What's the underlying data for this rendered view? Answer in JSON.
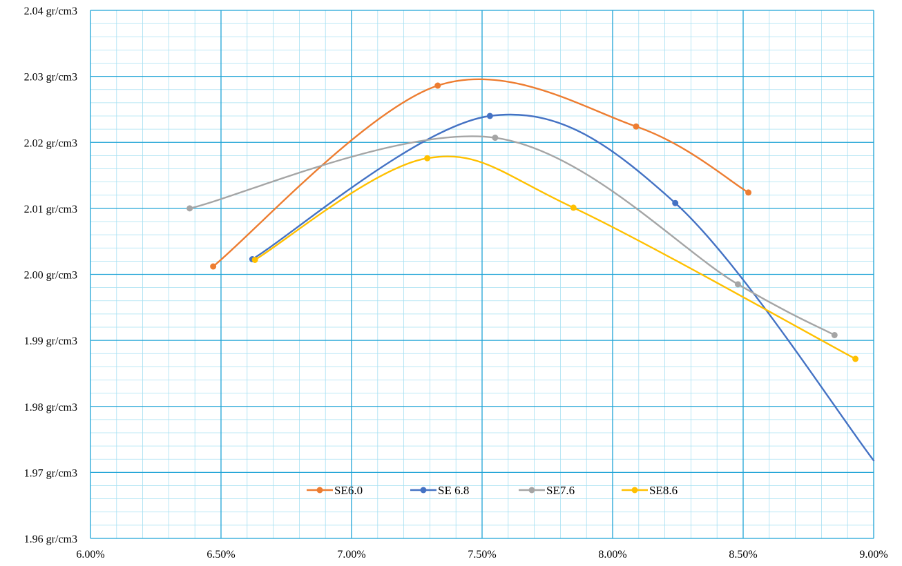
{
  "chart_data": {
    "type": "line",
    "title": "",
    "xlabel": "",
    "ylabel": "",
    "xlim": [
      0.06,
      0.09
    ],
    "ylim": [
      1.96,
      2.04
    ],
    "x_ticks": [
      0.06,
      0.065,
      0.07,
      0.075,
      0.08,
      0.085,
      0.09
    ],
    "x_tick_labels": [
      "6.00%",
      "6.50%",
      "7.00%",
      "7.50%",
      "8.00%",
      "8.50%",
      "9.00%"
    ],
    "y_ticks": [
      1.96,
      1.97,
      1.98,
      1.99,
      2.0,
      2.01,
      2.02,
      2.03,
      2.04
    ],
    "y_tick_labels": [
      "1.96 gr/cm3",
      "1.97 gr/cm3",
      "1.98 gr/cm3",
      "1.99 gr/cm3",
      "2.00 gr/cm3",
      "2.01 gr/cm3",
      "2.02 gr/cm3",
      "2.03 gr/cm3",
      "2.04 gr/cm3"
    ],
    "grid": true,
    "legend_position": "bottom-center",
    "series": [
      {
        "name": "SE6.0",
        "color": "#ED7D31",
        "points": [
          [
            0.0647,
            2.0012
          ],
          [
            0.0733,
            2.0286
          ],
          [
            0.0809,
            2.0224
          ],
          [
            0.0852,
            2.0124
          ]
        ]
      },
      {
        "name": "SE 6.8",
        "color": "#4472C4",
        "points": [
          [
            0.0662,
            2.0023
          ],
          [
            0.0753,
            2.024
          ],
          [
            0.0824,
            2.0108
          ],
          [
            0.09,
            1.9718
          ]
        ]
      },
      {
        "name": "SE7.6",
        "color": "#A5A5A5",
        "points": [
          [
            0.0638,
            2.01
          ],
          [
            0.0755,
            2.0207
          ],
          [
            0.0848,
            1.9985
          ],
          [
            0.0885,
            1.9908
          ]
        ]
      },
      {
        "name": "SE8.6",
        "color": "#FFC000",
        "points": [
          [
            0.0663,
            2.0022
          ],
          [
            0.0729,
            2.0176
          ],
          [
            0.0785,
            2.0101
          ],
          [
            0.0893,
            1.9872
          ]
        ]
      }
    ]
  }
}
